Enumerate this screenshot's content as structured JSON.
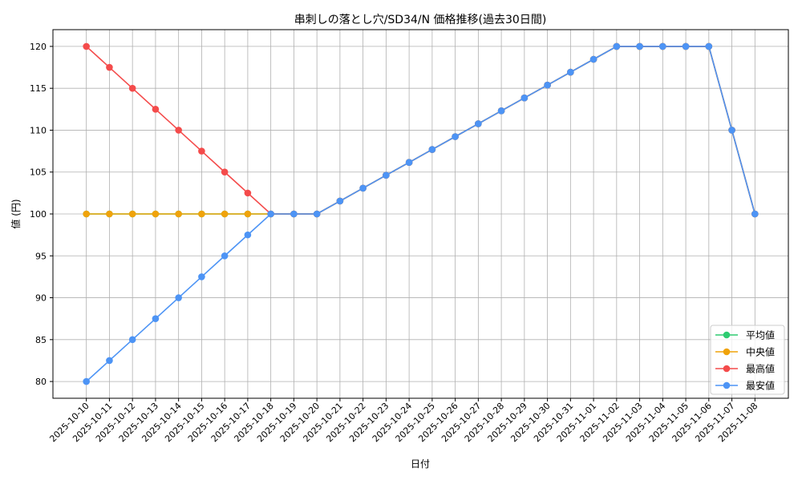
{
  "chart_data": {
    "type": "line",
    "title": "串刺しの落とし穴/SD34/N 価格推移(過去30日間)",
    "xlabel": "日付",
    "ylabel": "値 (円)",
    "ylim": [
      78,
      122
    ],
    "yticks": [
      80,
      85,
      90,
      95,
      100,
      105,
      110,
      115,
      120
    ],
    "grid": true,
    "legend_position": "lower-right",
    "x": [
      "2025-10-10",
      "2025-10-11",
      "2025-10-12",
      "2025-10-13",
      "2025-10-14",
      "2025-10-15",
      "2025-10-16",
      "2025-10-17",
      "2025-10-18",
      "2025-10-19",
      "2025-10-20",
      "2025-10-21",
      "2025-10-22",
      "2025-10-23",
      "2025-10-24",
      "2025-10-25",
      "2025-10-26",
      "2025-10-27",
      "2025-10-28",
      "2025-10-29",
      "2025-10-30",
      "2025-10-31",
      "2025-11-01",
      "2025-11-02",
      "2025-11-03",
      "2025-11-04",
      "2025-11-05",
      "2025-11-06",
      "2025-11-07",
      "2025-11-08"
    ],
    "series": [
      {
        "name": "平均値",
        "color": "#2ecc71",
        "values": [
          100,
          100,
          100,
          100,
          100,
          100,
          100,
          100,
          100,
          100,
          100,
          101.54,
          103.08,
          104.62,
          106.15,
          107.69,
          109.23,
          110.77,
          112.31,
          113.85,
          115.38,
          116.92,
          118.46,
          120,
          120,
          120,
          120,
          120,
          110,
          100
        ]
      },
      {
        "name": "中央値",
        "color": "#f0a30a",
        "values": [
          100,
          100,
          100,
          100,
          100,
          100,
          100,
          100,
          100,
          100,
          100,
          101.54,
          103.08,
          104.62,
          106.15,
          107.69,
          109.23,
          110.77,
          112.31,
          113.85,
          115.38,
          116.92,
          118.46,
          120,
          120,
          120,
          120,
          120,
          110,
          100
        ]
      },
      {
        "name": "最高値",
        "color": "#f44b4b",
        "values": [
          120,
          117.5,
          115,
          112.5,
          110,
          107.5,
          105,
          102.5,
          100,
          100,
          100,
          101.54,
          103.08,
          104.62,
          106.15,
          107.69,
          109.23,
          110.77,
          112.31,
          113.85,
          115.38,
          116.92,
          118.46,
          120,
          120,
          120,
          120,
          120,
          110,
          100
        ]
      },
      {
        "name": "最安値",
        "color": "#4d94f5",
        "values": [
          80,
          82.5,
          85,
          87.5,
          90,
          92.5,
          95,
          97.5,
          100,
          100,
          100,
          101.54,
          103.08,
          104.62,
          106.15,
          107.69,
          109.23,
          110.77,
          112.31,
          113.85,
          115.38,
          116.92,
          118.46,
          120,
          120,
          120,
          120,
          120,
          110,
          100
        ]
      }
    ]
  }
}
